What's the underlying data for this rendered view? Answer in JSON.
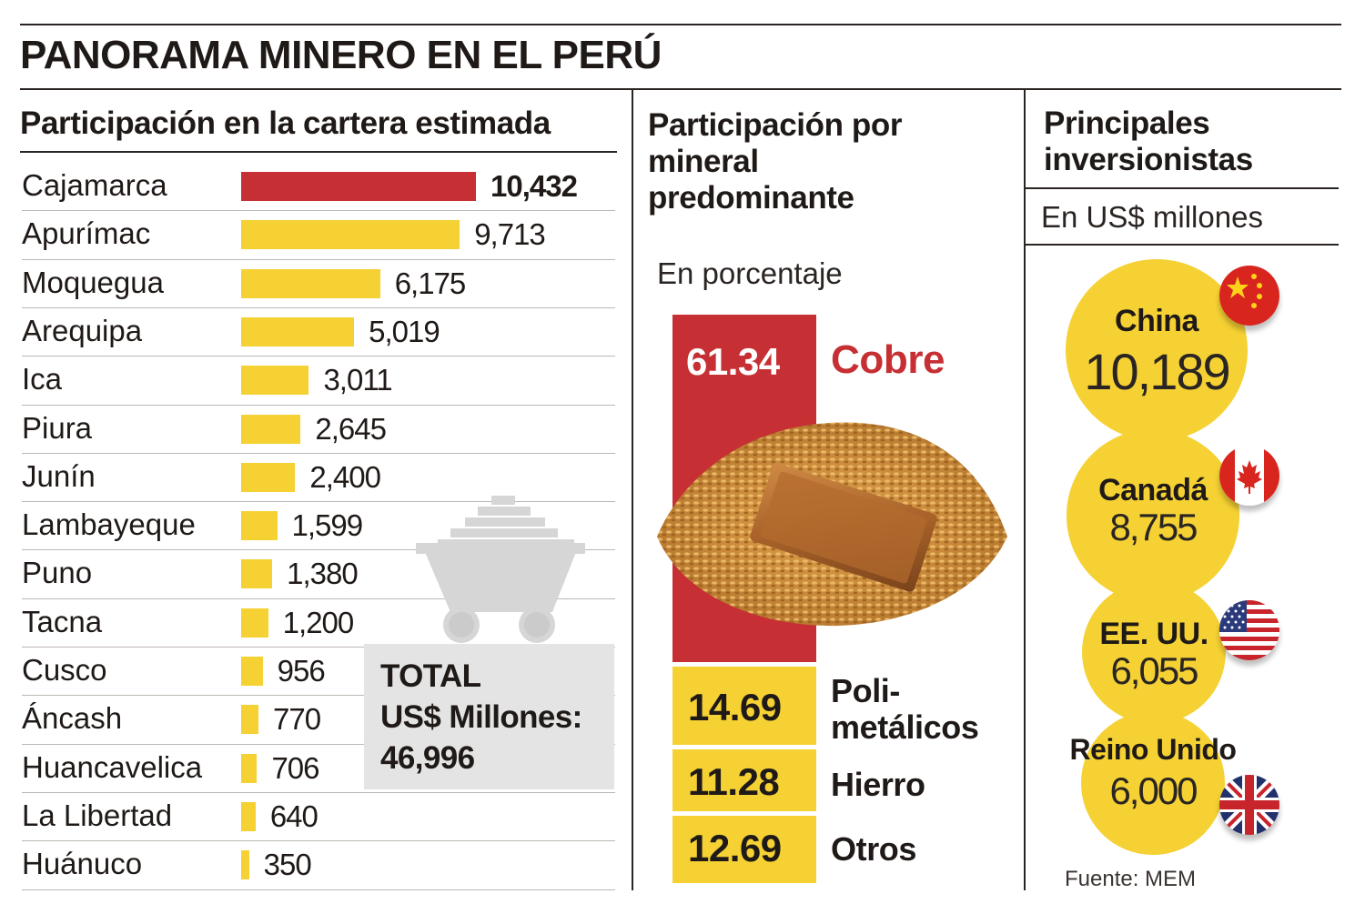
{
  "title": "PANORAMA MINERO EN EL PERÚ",
  "sections": {
    "cartera": {
      "title": "Participación en la cartera estimada"
    },
    "mineral": {
      "title_lines": [
        "Participación por",
        "mineral",
        "predominante"
      ],
      "subtitle": "En porcentaje"
    },
    "inversionistas": {
      "title_lines": [
        "Principales",
        "inversionistas"
      ],
      "subtitle": "En US$ millones"
    }
  },
  "total": {
    "line1": "TOTAL",
    "line2": "US$ Millones:",
    "line3": "46,996"
  },
  "chart_data": [
    {
      "type": "bar",
      "orientation": "horizontal",
      "title": "Participación en la cartera estimada",
      "categories": [
        "Cajamarca",
        "Apurímac",
        "Moquegua",
        "Arequipa",
        "Ica",
        "Piura",
        "Junín",
        "Lambayeque",
        "Puno",
        "Tacna",
        "Cusco",
        "Áncash",
        "Huancavelica",
        "La Libertad",
        "Huánuco"
      ],
      "values": [
        10432,
        9713,
        6175,
        5019,
        3011,
        2645,
        2400,
        1599,
        1380,
        1200,
        956,
        770,
        706,
        640,
        350
      ],
      "labels": [
        "10,432",
        "9,713",
        "6,175",
        "5,019",
        "3,011",
        "2,645",
        "2,400",
        "1,599",
        "1,380",
        "1,200",
        "956",
        "770",
        "706",
        "640",
        "350"
      ],
      "colors": {
        "highlight": "#c62f33",
        "default": "#f5d133"
      }
    },
    {
      "type": "bar",
      "orientation": "stacked-vertical",
      "title": "Participación por mineral predominante",
      "unit": "En porcentaje",
      "categories": [
        "Cobre",
        "Poli-metálicos",
        "Hierro",
        "Otros"
      ],
      "label_lines": [
        [
          "Cobre"
        ],
        [
          "Poli-",
          "metálicos"
        ],
        [
          "Hierro"
        ],
        [
          "Otros"
        ]
      ],
      "values": [
        61.34,
        14.69,
        11.28,
        12.69
      ],
      "labels": [
        "61.34",
        "14.69",
        "11.28",
        "12.69"
      ],
      "colors": {
        "Cobre": "#c62f33",
        "others": "#f5d133"
      }
    },
    {
      "type": "bubble",
      "title": "Principales inversionistas",
      "unit": "En US$ millones",
      "categories": [
        "China",
        "Canadá",
        "EE. UU.",
        "Reino Unido"
      ],
      "values": [
        10189,
        8755,
        6055,
        6000
      ],
      "labels": [
        "10,189",
        "8,755",
        "6,055",
        "6,000"
      ],
      "flag_icons": [
        "china-flag-icon",
        "canada-flag-icon",
        "usa-flag-icon",
        "uk-flag-icon"
      ],
      "color": "#f5d133"
    }
  ],
  "source": "Fuente: MEM"
}
